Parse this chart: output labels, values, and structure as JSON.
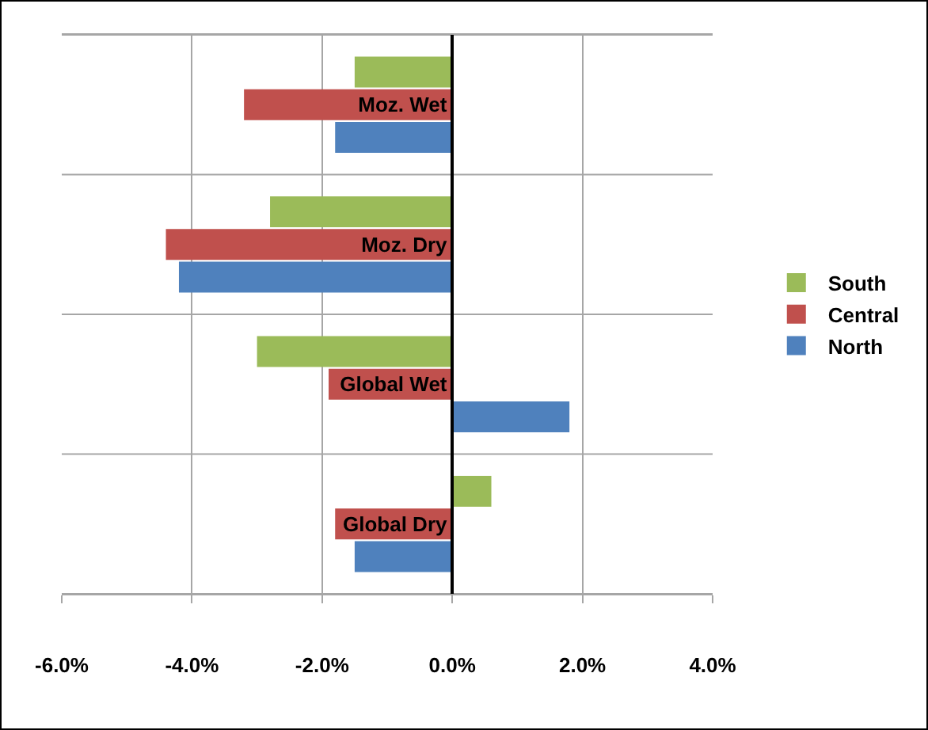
{
  "chart_data": {
    "type": "bar",
    "orientation": "horizontal",
    "categories": [
      "Moz. Wet",
      "Moz. Dry",
      "Global Wet",
      "Global Dry"
    ],
    "series": [
      {
        "name": "South",
        "color": "#9bbb59",
        "values": [
          -1.5,
          -2.8,
          -3.0,
          0.6
        ]
      },
      {
        "name": "Central",
        "color": "#c0504d",
        "values": [
          -3.2,
          -4.4,
          -1.9,
          -1.8
        ]
      },
      {
        "name": "North",
        "color": "#4f81bd",
        "values": [
          -1.8,
          -4.2,
          1.8,
          -1.5
        ]
      }
    ],
    "xlim": [
      -6,
      4
    ],
    "xticks": [
      {
        "value": -6,
        "label": "-6.0%"
      },
      {
        "value": -4,
        "label": "-4.0%"
      },
      {
        "value": -2,
        "label": "-2.0%"
      },
      {
        "value": 0,
        "label": "0.0%"
      },
      {
        "value": 2,
        "label": "2.0%"
      },
      {
        "value": 4,
        "label": "4.0%"
      }
    ],
    "grid": true,
    "legend": "right"
  }
}
